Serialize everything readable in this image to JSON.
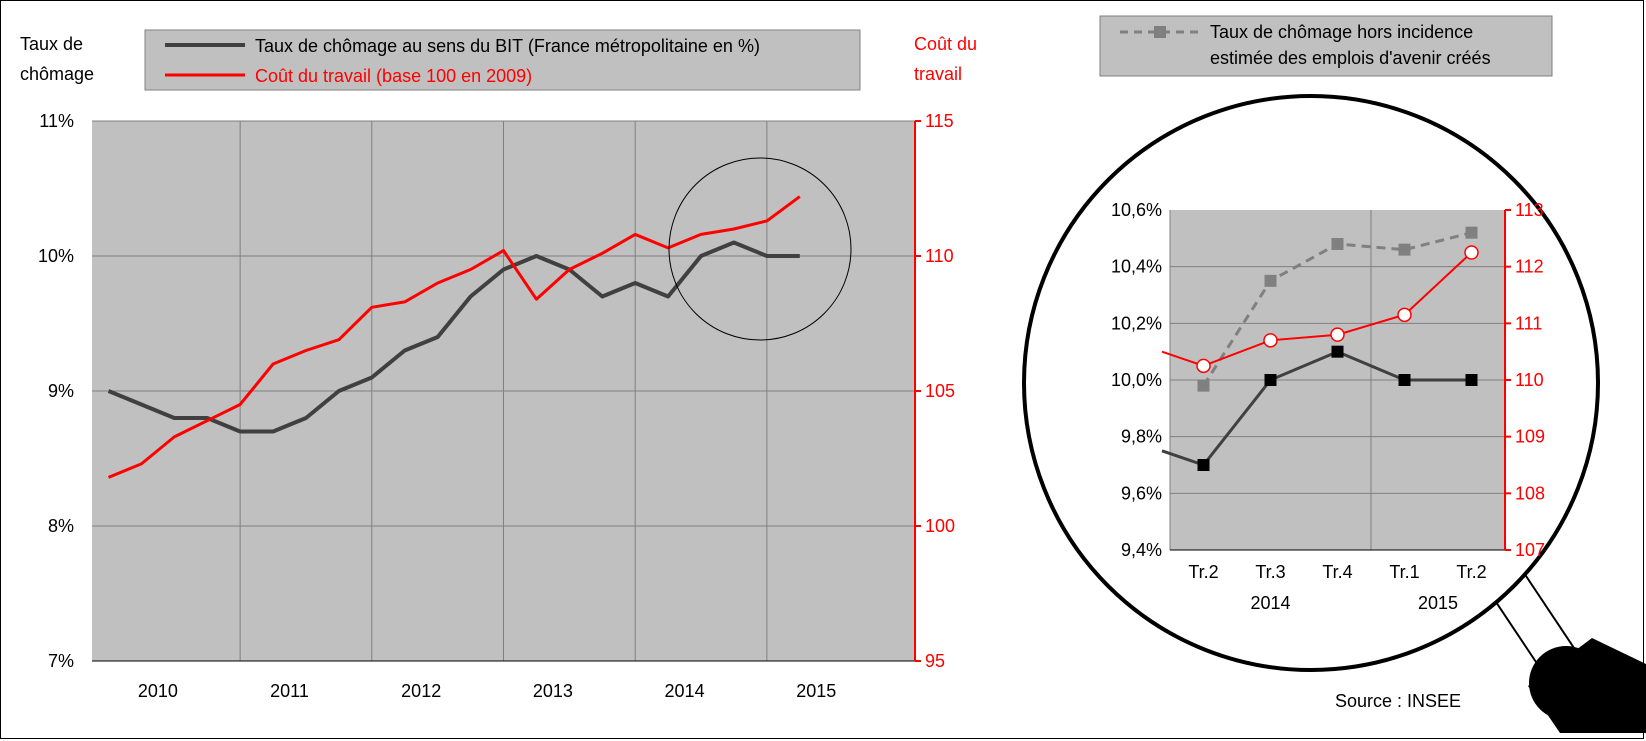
{
  "chart_data": [
    {
      "type": "line",
      "x": [
        "2010 T1",
        "2010 T2",
        "2010 T3",
        "2010 T4",
        "2011 T1",
        "2011 T2",
        "2011 T3",
        "2011 T4",
        "2012 T1",
        "2012 T2",
        "2012 T3",
        "2012 T4",
        "2013 T1",
        "2013 T2",
        "2013 T3",
        "2013 T4",
        "2014 T1",
        "2014 T2",
        "2014 T3",
        "2014 T4",
        "2015 T1",
        "2015 T2"
      ],
      "x_tick_labels": [
        "2010",
        "2011",
        "2012",
        "2013",
        "2014",
        "2015"
      ],
      "ylabel": "Taux de chômage",
      "y2label": "Coût du travail",
      "ylim": [
        7,
        11
      ],
      "y_ticks": [
        "7%",
        "8%",
        "9%",
        "10%",
        "11%"
      ],
      "y2lim": [
        95,
        115
      ],
      "y2_ticks": [
        "95",
        "100",
        "105",
        "110",
        "115"
      ],
      "grid": true,
      "legend_position": "top",
      "series": [
        {
          "name": "Taux de chômage au sens du BIT (France métropolitaine en %)",
          "axis": "left",
          "color": "#404040",
          "values": [
            9.0,
            8.9,
            8.8,
            8.8,
            8.7,
            8.7,
            8.8,
            9.0,
            9.1,
            9.3,
            9.4,
            9.7,
            9.9,
            10.0,
            9.9,
            9.7,
            9.8,
            9.7,
            10.0,
            10.1,
            10.0,
            10.0
          ]
        },
        {
          "name": "Coût du travail (base 100 en 2009)",
          "axis": "right",
          "color": "#ff0000",
          "values": [
            101.8,
            102.3,
            103.3,
            103.9,
            104.5,
            106.0,
            106.5,
            106.9,
            108.1,
            108.3,
            109.0,
            109.5,
            110.2,
            108.4,
            109.5,
            110.1,
            110.8,
            110.3,
            110.8,
            111.0,
            111.3,
            112.2
          ]
        }
      ]
    },
    {
      "type": "line",
      "x": [
        "Tr.2",
        "Tr.3",
        "Tr.4",
        "Tr.1",
        "Tr.2"
      ],
      "x_group_labels": [
        "2014",
        "2015"
      ],
      "ylim": [
        9.4,
        10.6
      ],
      "y_ticks": [
        "9,4%",
        "9,6%",
        "9,8%",
        "10,0%",
        "10,2%",
        "10,4%",
        "10,6%"
      ],
      "y2lim": [
        107,
        113
      ],
      "y2_ticks": [
        "107",
        "108",
        "109",
        "110",
        "111",
        "112",
        "113"
      ],
      "grid": true,
      "legend_position": "top",
      "series": [
        {
          "name": "Taux de chômage hors incidence estimée des emplois d'avenir créés",
          "axis": "left",
          "color": "#808080",
          "style": "dashed",
          "values": [
            9.98,
            10.35,
            10.48,
            10.46,
            10.52
          ]
        },
        {
          "name": "Taux de chômage au sens du BIT",
          "axis": "left",
          "color": "#404040",
          "lead_in": 9.75,
          "values": [
            9.7,
            10.0,
            10.1,
            10.0,
            10.0
          ]
        },
        {
          "name": "Coût du travail",
          "axis": "right",
          "color": "#ff0000",
          "lead_in": 110.5,
          "values": [
            110.25,
            110.7,
            110.8,
            111.15,
            112.25
          ]
        }
      ]
    }
  ],
  "main_legend": [
    "Taux de chômage au sens du BIT (France métropolitaine en %)",
    "Coût du travail (base 100 en 2009)"
  ],
  "zoom_legend": [
    "Taux de chômage hors incidence",
    "estimée des emplois d'avenir créés"
  ],
  "left_axis_title": [
    "Taux de",
    "chômage"
  ],
  "right_axis_title": [
    "Coût du",
    "travail"
  ],
  "source": "Source : INSEE",
  "colors": {
    "plot_bg": "#c0c0c0",
    "unemployment": "#404040",
    "labour_cost": "#ff0000",
    "excluding": "#808080"
  }
}
